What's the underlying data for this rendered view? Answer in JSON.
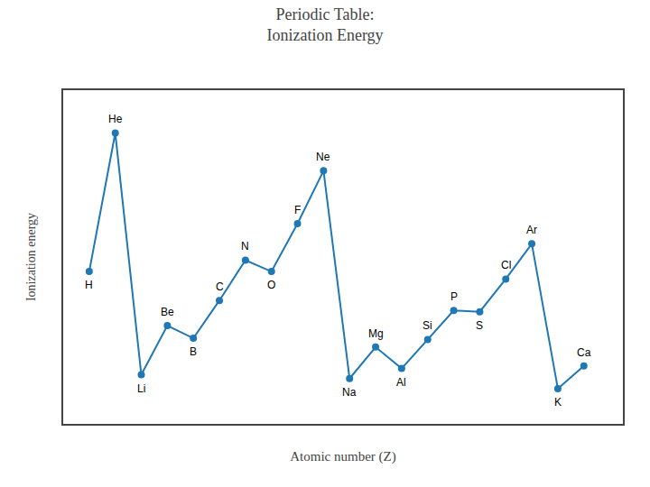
{
  "chart_data": {
    "type": "line",
    "title": "Periodic Table:\nIonization Energy",
    "xlabel": "Atomic number (Z)",
    "ylabel": "Ionization energy",
    "x": [
      1,
      2,
      3,
      4,
      5,
      6,
      7,
      8,
      9,
      10,
      11,
      12,
      13,
      14,
      15,
      16,
      17,
      18,
      19,
      20
    ],
    "values": [
      13.6,
      24.6,
      5.4,
      9.3,
      8.3,
      11.3,
      14.5,
      13.6,
      17.4,
      21.6,
      5.1,
      7.6,
      5.9,
      8.2,
      10.5,
      10.4,
      13.0,
      15.8,
      4.3,
      6.1
    ],
    "annotations": [
      {
        "x": 1,
        "y": 13.6,
        "text": "H"
      },
      {
        "x": 2,
        "y": 24.6,
        "text": "He"
      },
      {
        "x": 3,
        "y": 5.4,
        "text": "Li"
      },
      {
        "x": 4,
        "y": 9.3,
        "text": "Be"
      },
      {
        "x": 5,
        "y": 8.3,
        "text": "B"
      },
      {
        "x": 6,
        "y": 11.3,
        "text": "C"
      },
      {
        "x": 7,
        "y": 14.5,
        "text": "N"
      },
      {
        "x": 8,
        "y": 13.6,
        "text": "O"
      },
      {
        "x": 9,
        "y": 17.4,
        "text": "F"
      },
      {
        "x": 10,
        "y": 21.6,
        "text": "Ne"
      },
      {
        "x": 11,
        "y": 5.1,
        "text": "Na"
      },
      {
        "x": 12,
        "y": 7.6,
        "text": "Mg"
      },
      {
        "x": 13,
        "y": 5.9,
        "text": "Al"
      },
      {
        "x": 14,
        "y": 8.2,
        "text": "Si"
      },
      {
        "x": 15,
        "y": 10.5,
        "text": "P"
      },
      {
        "x": 16,
        "y": 10.4,
        "text": "S"
      },
      {
        "x": 17,
        "y": 13.0,
        "text": "Cl"
      },
      {
        "x": 18,
        "y": 15.8,
        "text": "Ar"
      },
      {
        "x": 19,
        "y": 4.3,
        "text": "K"
      },
      {
        "x": 20,
        "y": 6.1,
        "text": "Ca"
      }
    ],
    "xlim": [
      0.0,
      21.5
    ],
    "ylim": [
      1.5,
      28.0
    ],
    "tick_labels": false,
    "grid": false,
    "marker": "circle"
  }
}
